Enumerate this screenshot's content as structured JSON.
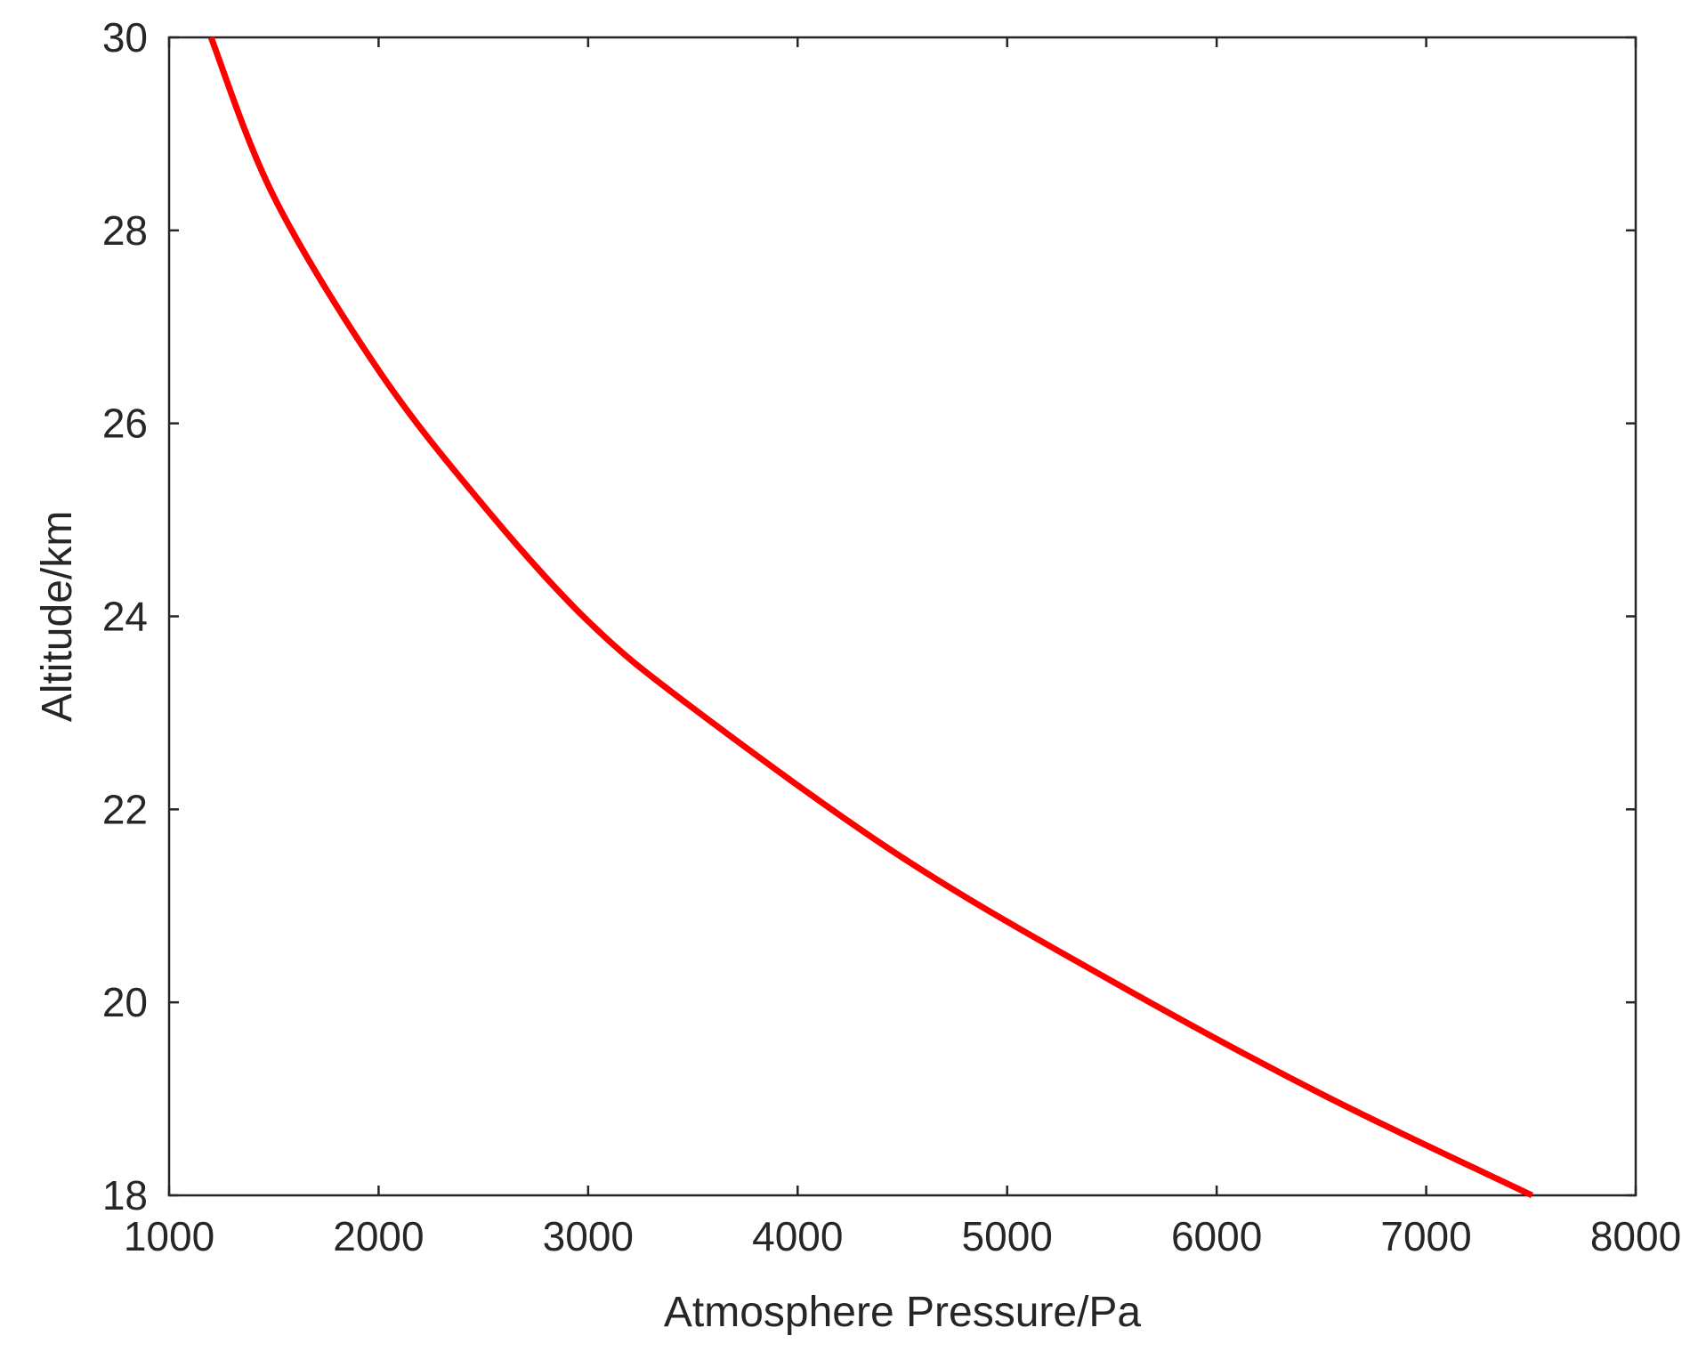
{
  "chart_data": {
    "type": "line",
    "title": "",
    "xlabel": "Atmosphere Pressure/Pa",
    "ylabel": "Altitude/km",
    "xlim": [
      1000,
      8000
    ],
    "ylim": [
      18,
      30
    ],
    "xticks": [
      "1000",
      "2000",
      "3000",
      "4000",
      "5000",
      "6000",
      "7000",
      "8000"
    ],
    "yticks": [
      "18",
      "20",
      "22",
      "24",
      "26",
      "28",
      "30"
    ],
    "grid": false,
    "legend": "none",
    "series": [
      {
        "color": "#ff0000",
        "x": [
          7505,
          6500,
          5500,
          4500,
          3500,
          3000,
          2500,
          2000,
          1500,
          1200
        ],
        "y": [
          18.0,
          19.05,
          20.22,
          21.5,
          23.05,
          23.95,
          25.15,
          26.55,
          28.35,
          30.0
        ]
      }
    ]
  }
}
